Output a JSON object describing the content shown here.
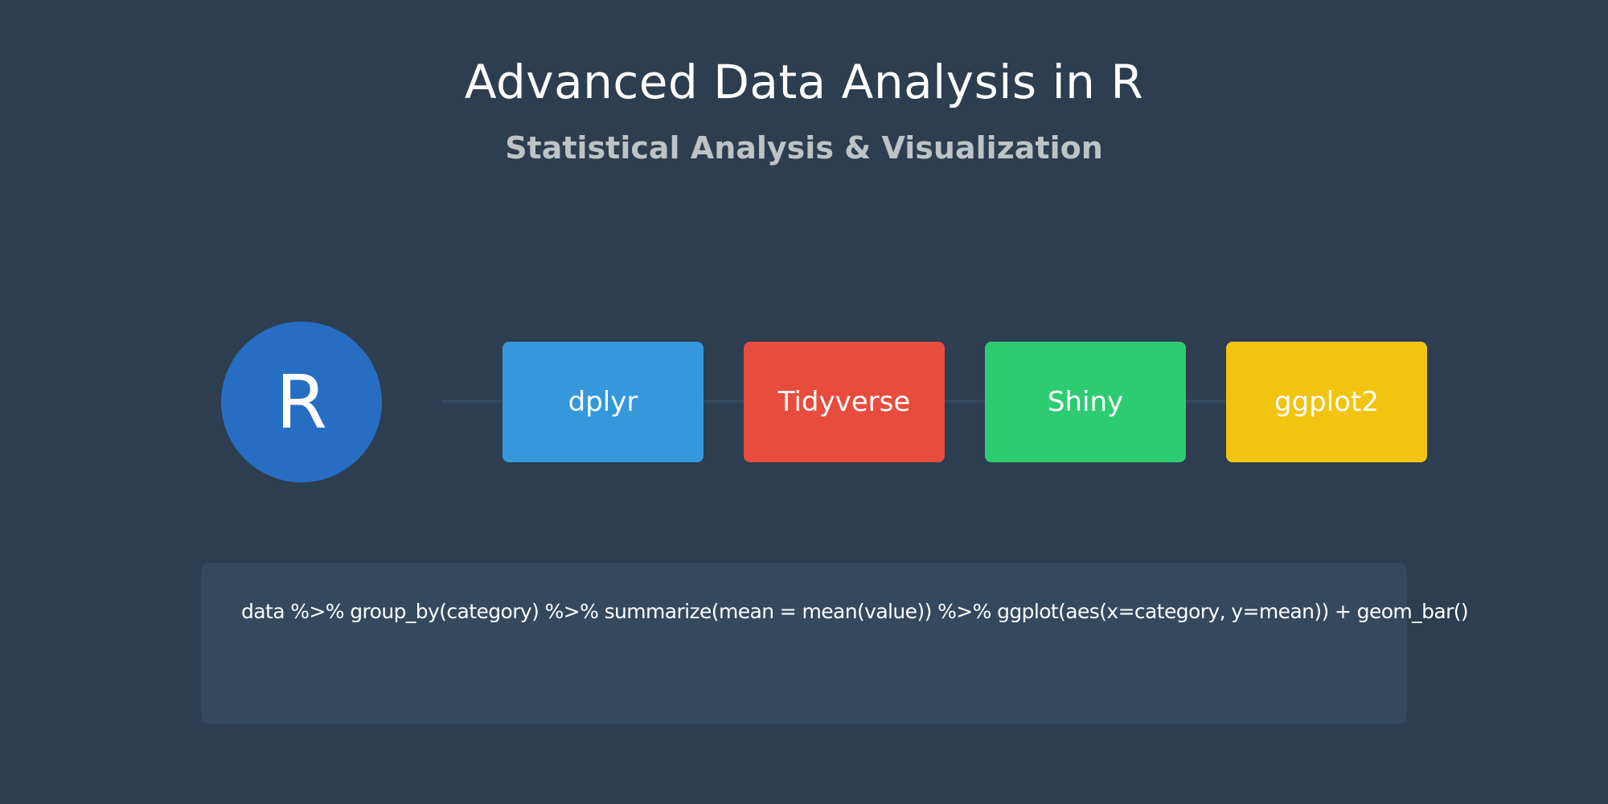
{
  "title": "Advanced Data Analysis in R",
  "subtitle": "Statistical Analysis & Visualization",
  "logo": {
    "letter": "R",
    "color": "#276dc3"
  },
  "packages": [
    {
      "label": "dplyr",
      "color": "#3498db"
    },
    {
      "label": "Tidyverse",
      "color": "#e74c3c"
    },
    {
      "label": "Shiny",
      "color": "#2ecc71"
    },
    {
      "label": "ggplot2",
      "color": "#f1c40f"
    }
  ],
  "code": {
    "text": "data %>% group_by(category) %>% summarize(mean = mean(value)) %>% ggplot(aes(x=category, y=mean)) + geom_bar()"
  },
  "colors": {
    "background": "#2c3e50",
    "panel": "#34495e",
    "subtitle_text": "#bdc3c7"
  }
}
